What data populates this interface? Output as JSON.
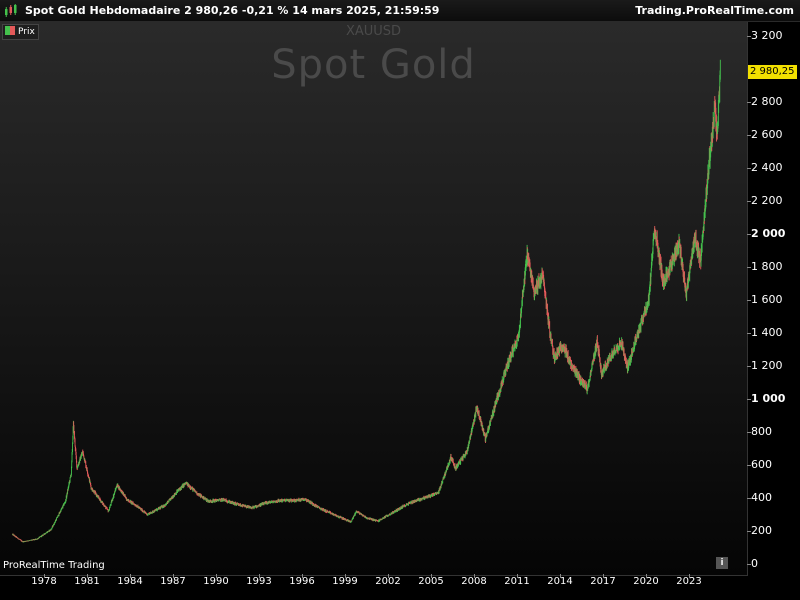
{
  "header": {
    "title": "Spot  Gold Hebdomadaire 2 980,26 -0,21 % 14 mars 2025, 21:59:59",
    "brand": "Trading.ProRealTime.com"
  },
  "legend": {
    "label": "Prix"
  },
  "watermark": {
    "symbol": "XAUUSD",
    "name": "Spot  Gold"
  },
  "footer": {
    "platform": "ProRealTime Trading",
    "info_icon": "i"
  },
  "last_price": {
    "label": "2 980,25",
    "value": 2980.25,
    "color": "#f2e000"
  },
  "colors": {
    "up": "#44c14d",
    "down": "#e35a5a",
    "background": "#000000"
  },
  "chart_data": {
    "type": "candlestick",
    "title": "Spot  Gold",
    "symbol": "XAUUSD",
    "timeframe": "weekly",
    "y_ticks": [
      {
        "label": "3 200",
        "value": 3200
      },
      {
        "label": "2 800",
        "value": 2800
      },
      {
        "label": "2 600",
        "value": 2600
      },
      {
        "label": "2 400",
        "value": 2400
      },
      {
        "label": "2 200",
        "value": 2200
      },
      {
        "label": "2 000",
        "value": 2000,
        "bold": true
      },
      {
        "label": "1 800",
        "value": 1800
      },
      {
        "label": "1 600",
        "value": 1600
      },
      {
        "label": "1 400",
        "value": 1400
      },
      {
        "label": "1 200",
        "value": 1200
      },
      {
        "label": "1 000",
        "value": 1000,
        "bold": true
      },
      {
        "label": "800",
        "value": 800
      },
      {
        "label": "600",
        "value": 600
      },
      {
        "label": "400",
        "value": 400
      },
      {
        "label": "200",
        "value": 200
      },
      {
        "label": "0",
        "value": 0
      }
    ],
    "x_ticks": [
      "1978",
      "1981",
      "1984",
      "1987",
      "1990",
      "1993",
      "1996",
      "1999",
      "2002",
      "2005",
      "2008",
      "2011",
      "2014",
      "2017",
      "2020",
      "2023"
    ],
    "ylim": [
      0,
      3200
    ],
    "xlim": [
      1975.8,
      2026.0
    ],
    "price_path": [
      [
        1975.8,
        180
      ],
      [
        1976.5,
        135
      ],
      [
        1977.5,
        150
      ],
      [
        1978.5,
        210
      ],
      [
        1979.5,
        380
      ],
      [
        1979.9,
        550
      ],
      [
        1980.05,
        850
      ],
      [
        1980.3,
        580
      ],
      [
        1980.7,
        680
      ],
      [
        1981.3,
        460
      ],
      [
        1982.5,
        320
      ],
      [
        1983.1,
        480
      ],
      [
        1983.8,
        390
      ],
      [
        1984.5,
        350
      ],
      [
        1985.2,
        300
      ],
      [
        1985.9,
        330
      ],
      [
        1986.5,
        360
      ],
      [
        1987.3,
        440
      ],
      [
        1987.9,
        490
      ],
      [
        1988.8,
        420
      ],
      [
        1989.5,
        380
      ],
      [
        1990.5,
        390
      ],
      [
        1991.5,
        360
      ],
      [
        1992.5,
        340
      ],
      [
        1993.5,
        370
      ],
      [
        1994.5,
        385
      ],
      [
        1995.5,
        385
      ],
      [
        1996.2,
        395
      ],
      [
        1997.2,
        340
      ],
      [
        1998.2,
        300
      ],
      [
        1999.4,
        255
      ],
      [
        1999.8,
        320
      ],
      [
        2000.5,
        280
      ],
      [
        2001.3,
        260
      ],
      [
        2002.5,
        320
      ],
      [
        2003.5,
        370
      ],
      [
        2004.5,
        400
      ],
      [
        2005.5,
        430
      ],
      [
        2006.4,
        650
      ],
      [
        2006.7,
        580
      ],
      [
        2007.5,
        680
      ],
      [
        2008.2,
        950
      ],
      [
        2008.8,
        760
      ],
      [
        2009.6,
        1000
      ],
      [
        2010.5,
        1250
      ],
      [
        2011.1,
        1380
      ],
      [
        2011.7,
        1880
      ],
      [
        2012.2,
        1650
      ],
      [
        2012.8,
        1750
      ],
      [
        2013.3,
        1400
      ],
      [
        2013.6,
        1250
      ],
      [
        2014.2,
        1330
      ],
      [
        2014.9,
        1180
      ],
      [
        2015.9,
        1060
      ],
      [
        2016.6,
        1350
      ],
      [
        2016.9,
        1150
      ],
      [
        2017.8,
        1300
      ],
      [
        2018.3,
        1340
      ],
      [
        2018.7,
        1190
      ],
      [
        2019.5,
        1420
      ],
      [
        2020.2,
        1600
      ],
      [
        2020.6,
        2050
      ],
      [
        2021.2,
        1700
      ],
      [
        2021.7,
        1800
      ],
      [
        2022.3,
        1950
      ],
      [
        2022.8,
        1640
      ],
      [
        2023.4,
        1980
      ],
      [
        2023.8,
        1830
      ],
      [
        2024.3,
        2350
      ],
      [
        2024.8,
        2750
      ],
      [
        2024.95,
        2600
      ],
      [
        2025.2,
        2980
      ]
    ],
    "last_value": 2980.25
  }
}
